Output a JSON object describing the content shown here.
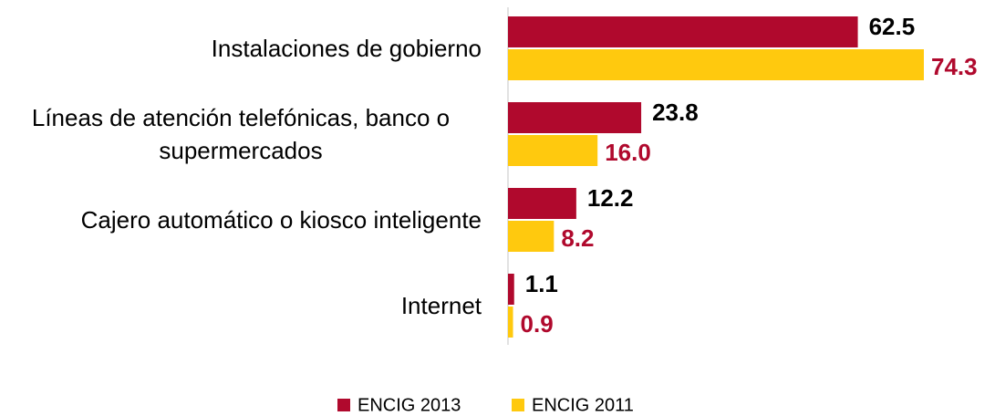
{
  "chart_data": {
    "type": "bar",
    "orientation": "horizontal",
    "categories": [
      "Instalaciones de gobierno",
      "Líneas de atención telefónicas, banco o supermercados",
      "Cajero automático o kiosco inteligente",
      "Internet"
    ],
    "series": [
      {
        "name": "ENCIG 2013",
        "color": "#b0092d",
        "label_color": "#000000",
        "values": [
          62.5,
          23.8,
          12.2,
          1.1
        ]
      },
      {
        "name": "ENCIG 2011",
        "color": "#ffc90e",
        "label_color": "#b0092d",
        "values": [
          74.3,
          16.0,
          8.2,
          0.9
        ],
        "value_labels": [
          "74.3",
          "16.0",
          "8.2",
          "0.9"
        ]
      }
    ],
    "legend": "bottom"
  }
}
